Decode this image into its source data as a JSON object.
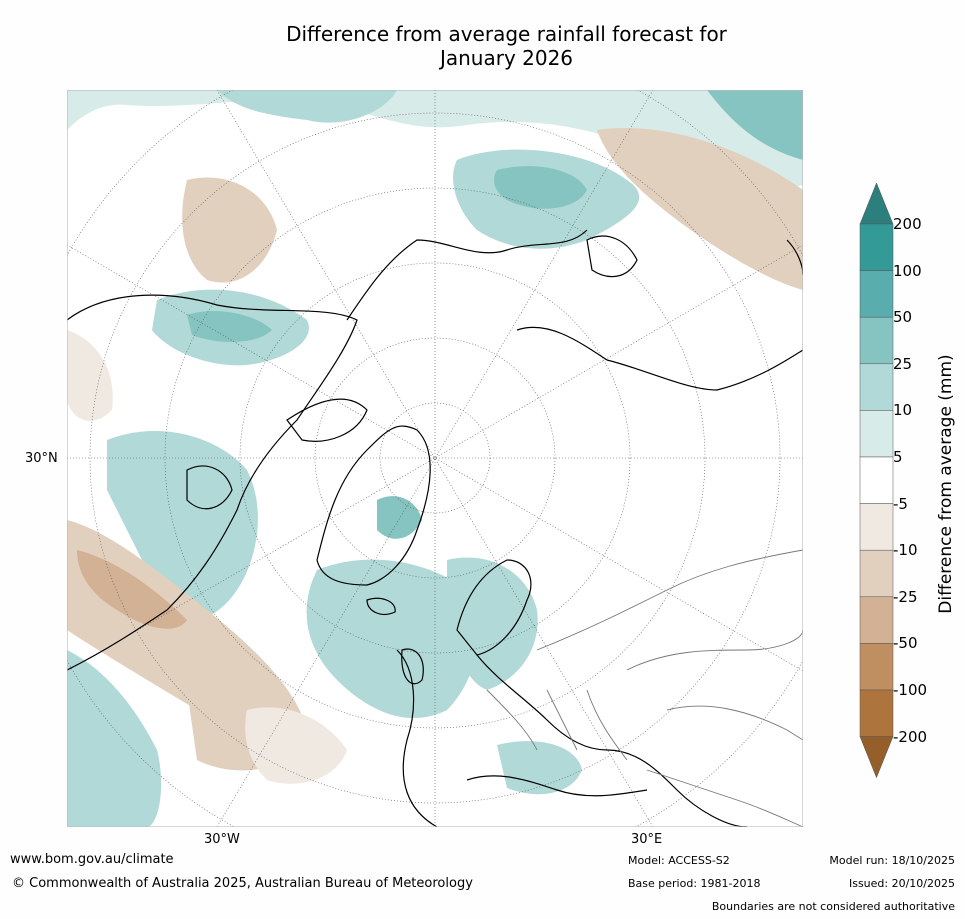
{
  "title_line1": "Difference from average rainfall forecast for",
  "title_line2": "January 2026",
  "map": {
    "longitude_labels": [
      "30°W",
      "30°E"
    ],
    "latitude_labels": [
      "30°N"
    ]
  },
  "colorbar": {
    "title": "Difference from average (mm)",
    "ticks": [
      "200",
      "100",
      "50",
      "25",
      "10",
      "5",
      "-5",
      "-10",
      "-25",
      "-50",
      "-100",
      "-200"
    ],
    "colors": [
      "#2c7f7d",
      "#339a98",
      "#5aadad",
      "#86c4c1",
      "#b1d9d7",
      "#d7ebe9",
      "#ffffff",
      "#f0e9e2",
      "#e2d0bf",
      "#d2b194",
      "#bf8f61",
      "#ad753d",
      "#945f28"
    ]
  },
  "footer": {
    "website": "www.bom.gov.au/climate",
    "copyright": "© Commonwealth of Australia 2025, Australian Bureau of Meteorology",
    "model": "Model: ACCESS-S2",
    "base_period": "Base period: 1981-2018",
    "model_run": "Model run: 18/10/2025",
    "issued": "Issued: 20/10/2025",
    "disclaimer": "Boundaries are not considered authoritative"
  }
}
